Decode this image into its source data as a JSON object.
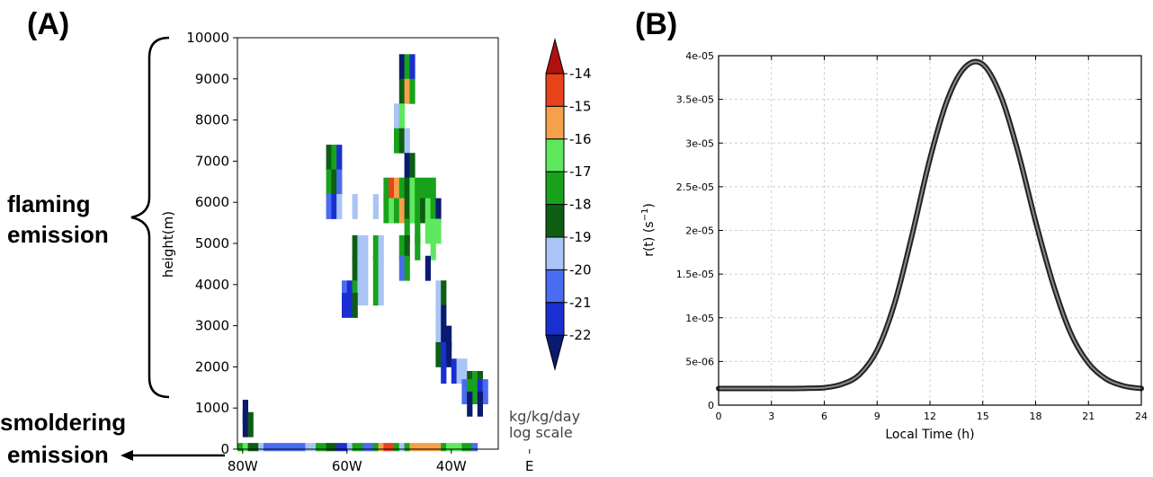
{
  "panel_a": {
    "label": "(A)",
    "flaming_label": [
      "flaming",
      "emission"
    ],
    "smoldering_label": [
      "smoldering",
      "emission"
    ],
    "ylabel": "height(m)",
    "y_ticks": [
      "0",
      "1000",
      "2000",
      "3000",
      "4000",
      "5000",
      "6000",
      "7000",
      "8000",
      "9000",
      "10000"
    ],
    "x_ticks": [
      "80W",
      "60W",
      "40W",
      "E"
    ],
    "colorbar": {
      "ticks": [
        "-14",
        "-15",
        "-16",
        "-17",
        "-18",
        "-19",
        "-20",
        "-21",
        "-22"
      ],
      "colors": [
        "#0a1a6e",
        "#1a2fd0",
        "#4a6cf0",
        "#a9c4f5",
        "#0d5e13",
        "#18a21c",
        "#5ee85e",
        "#f5a04a",
        "#e8421a",
        "#b01010"
      ],
      "unit_lines": [
        "kg/kg/day",
        "log scale"
      ]
    }
  },
  "panel_b": {
    "label": "(B)",
    "xlabel": "Local Time (h)",
    "ylabel_base": "r(t)  (s",
    "ylabel_sup": "−1",
    "ylabel_end": ")",
    "x_ticks": [
      "0",
      "3",
      "6",
      "9",
      "12",
      "15",
      "18",
      "21",
      "24"
    ],
    "y_ticks": [
      "0",
      "5e-06",
      "1e-05",
      "1.5e-05",
      "2e-05",
      "2.5e-05",
      "3e-05",
      "3.5e-05",
      "4e-05"
    ]
  },
  "chart_data": [
    {
      "type": "heatmap",
      "title": "",
      "xlabel": "",
      "ylabel": "height(m)",
      "xlim": [
        -81,
        -31
      ],
      "ylim": [
        0,
        10000
      ],
      "x_units": "degrees longitude (negative = W)",
      "value_units": "log10 kg/kg/day",
      "color_levels": [
        -22,
        -21,
        -20,
        -19,
        -18,
        -17,
        -16,
        -15,
        -14
      ],
      "cells": [
        {
          "x": -80,
          "y": 900,
          "v": -22.5
        },
        {
          "x": -80,
          "y": 600,
          "v": -22.5
        },
        {
          "x": -79,
          "y": 600,
          "v": -18.5
        },
        {
          "x": -64,
          "y": 7100,
          "v": -18.5
        },
        {
          "x": -63,
          "y": 7100,
          "v": -17.5
        },
        {
          "x": -62,
          "y": 7100,
          "v": -21.5
        },
        {
          "x": -64,
          "y": 6500,
          "v": -17.5
        },
        {
          "x": -63,
          "y": 6500,
          "v": -18.5
        },
        {
          "x": -62,
          "y": 6500,
          "v": -20.5
        },
        {
          "x": -64,
          "y": 5900,
          "v": -20.5
        },
        {
          "x": -63,
          "y": 5900,
          "v": -21.5
        },
        {
          "x": -62,
          "y": 5900,
          "v": -19.5
        },
        {
          "x": -59,
          "y": 5900,
          "v": -19.5
        },
        {
          "x": -55,
          "y": 5900,
          "v": -19.5
        },
        {
          "x": -50,
          "y": 9300,
          "v": -22.5
        },
        {
          "x": -49,
          "y": 9300,
          "v": -17.5
        },
        {
          "x": -48,
          "y": 9300,
          "v": -21.5
        },
        {
          "x": -50,
          "y": 8700,
          "v": -18.5
        },
        {
          "x": -49,
          "y": 8700,
          "v": -15.5
        },
        {
          "x": -48,
          "y": 8700,
          "v": -17.5
        },
        {
          "x": -51,
          "y": 8100,
          "v": -19.5
        },
        {
          "x": -50,
          "y": 8100,
          "v": -16.5
        },
        {
          "x": -51,
          "y": 7500,
          "v": -17.5
        },
        {
          "x": -50,
          "y": 7500,
          "v": -18.5
        },
        {
          "x": -49,
          "y": 7500,
          "v": -19.5
        },
        {
          "x": -49,
          "y": 6900,
          "v": -22.5
        },
        {
          "x": -48,
          "y": 6900,
          "v": -18.5
        },
        {
          "x": -53,
          "y": 6300,
          "v": -17.5
        },
        {
          "x": -52,
          "y": 6300,
          "v": -14.5
        },
        {
          "x": -51,
          "y": 6300,
          "v": -15.5
        },
        {
          "x": -50,
          "y": 6300,
          "v": -17.5
        },
        {
          "x": -49,
          "y": 6300,
          "v": -18.5
        },
        {
          "x": -48,
          "y": 6300,
          "v": -16.5
        },
        {
          "x": -47,
          "y": 6300,
          "v": -17.5
        },
        {
          "x": -46,
          "y": 6300,
          "v": -17.5
        },
        {
          "x": -45,
          "y": 6300,
          "v": -17.5
        },
        {
          "x": -44,
          "y": 6300,
          "v": -17.5
        },
        {
          "x": -53,
          "y": 5800,
          "v": -17.5
        },
        {
          "x": -52,
          "y": 5800,
          "v": -16.5
        },
        {
          "x": -51,
          "y": 5800,
          "v": -17.5
        },
        {
          "x": -50,
          "y": 5800,
          "v": -15.5
        },
        {
          "x": -49,
          "y": 5800,
          "v": -18.5
        },
        {
          "x": -48,
          "y": 5800,
          "v": -16.5
        },
        {
          "x": -47,
          "y": 5800,
          "v": -17.5
        },
        {
          "x": -46,
          "y": 5800,
          "v": -18.5
        },
        {
          "x": -45,
          "y": 5800,
          "v": -16.5
        },
        {
          "x": -44,
          "y": 5800,
          "v": -17.5
        },
        {
          "x": -43,
          "y": 5800,
          "v": -22.5
        },
        {
          "x": -49,
          "y": 5300,
          "v": -17.5
        },
        {
          "x": -47,
          "y": 5300,
          "v": -17.5
        },
        {
          "x": -45,
          "y": 5300,
          "v": -16.5
        },
        {
          "x": -44,
          "y": 5300,
          "v": -16.5
        },
        {
          "x": -43,
          "y": 5300,
          "v": -16.5
        },
        {
          "x": -59,
          "y": 4900,
          "v": -18.5
        },
        {
          "x": -58,
          "y": 4900,
          "v": -19.5
        },
        {
          "x": -57,
          "y": 4900,
          "v": -19.5
        },
        {
          "x": -55,
          "y": 4900,
          "v": -17.5
        },
        {
          "x": -54,
          "y": 4900,
          "v": -19.5
        },
        {
          "x": -50,
          "y": 4900,
          "v": -17.5
        },
        {
          "x": -49,
          "y": 4900,
          "v": -18.5
        },
        {
          "x": -47,
          "y": 4900,
          "v": -17.5
        },
        {
          "x": -44,
          "y": 4900,
          "v": -16.5
        },
        {
          "x": -59,
          "y": 4400,
          "v": -18.5
        },
        {
          "x": -58,
          "y": 4400,
          "v": -19.5
        },
        {
          "x": -57,
          "y": 4400,
          "v": -19.5
        },
        {
          "x": -55,
          "y": 4400,
          "v": -17.5
        },
        {
          "x": -54,
          "y": 4400,
          "v": -19.5
        },
        {
          "x": -50,
          "y": 4400,
          "v": -20.5
        },
        {
          "x": -49,
          "y": 4400,
          "v": -17.5
        },
        {
          "x": -45,
          "y": 4400,
          "v": -22.5
        },
        {
          "x": -61,
          "y": 3800,
          "v": -20.5
        },
        {
          "x": -60,
          "y": 3800,
          "v": -21.5
        },
        {
          "x": -59,
          "y": 3800,
          "v": -17.5
        },
        {
          "x": -58,
          "y": 3800,
          "v": -19.5
        },
        {
          "x": -57,
          "y": 3800,
          "v": -19.5
        },
        {
          "x": -55,
          "y": 3800,
          "v": -17.5
        },
        {
          "x": -54,
          "y": 3800,
          "v": -19.5
        },
        {
          "x": -43,
          "y": 3800,
          "v": -19.5
        },
        {
          "x": -42,
          "y": 3800,
          "v": -18.5
        },
        {
          "x": -61,
          "y": 3500,
          "v": -21.5
        },
        {
          "x": -60,
          "y": 3500,
          "v": -21.5
        },
        {
          "x": -59,
          "y": 3500,
          "v": -18.5
        },
        {
          "x": -43,
          "y": 3200,
          "v": -19.5
        },
        {
          "x": -42,
          "y": 3200,
          "v": -22.5
        },
        {
          "x": -43,
          "y": 2700,
          "v": -19.5
        },
        {
          "x": -42,
          "y": 2700,
          "v": -22.5
        },
        {
          "x": -41,
          "y": 2700,
          "v": -22.5
        },
        {
          "x": -43,
          "y": 2300,
          "v": -18.5
        },
        {
          "x": -42,
          "y": 2300,
          "v": -21.5
        },
        {
          "x": -41,
          "y": 2300,
          "v": -22.5
        },
        {
          "x": -42,
          "y": 1900,
          "v": -21.5
        },
        {
          "x": -40,
          "y": 1900,
          "v": -21.5
        },
        {
          "x": -39,
          "y": 1900,
          "v": -19.5
        },
        {
          "x": -38,
          "y": 1900,
          "v": -19.5
        },
        {
          "x": -37,
          "y": 1600,
          "v": -18.5
        },
        {
          "x": -36,
          "y": 1600,
          "v": -17.5
        },
        {
          "x": -35,
          "y": 1600,
          "v": -18.5
        },
        {
          "x": -38,
          "y": 1400,
          "v": -20.5
        },
        {
          "x": -37,
          "y": 1400,
          "v": -17.5
        },
        {
          "x": -36,
          "y": 1400,
          "v": -17.5
        },
        {
          "x": -35,
          "y": 1400,
          "v": -21.5
        },
        {
          "x": -34,
          "y": 1400,
          "v": -20.5
        },
        {
          "x": -37,
          "y": 1100,
          "v": -22.5
        },
        {
          "x": -35,
          "y": 1100,
          "v": -22.5
        }
      ],
      "surface_row": {
        "y": 50,
        "cells": [
          {
            "x0": -81,
            "x1": -80,
            "v": -17.5
          },
          {
            "x0": -80,
            "x1": -79,
            "v": -16.5
          },
          {
            "x0": -79,
            "x1": -77,
            "v": -18.5
          },
          {
            "x0": -77,
            "x1": -76,
            "v": -19.5
          },
          {
            "x0": -76,
            "x1": -68,
            "v": -20.5
          },
          {
            "x0": -68,
            "x1": -66,
            "v": -19.5
          },
          {
            "x0": -66,
            "x1": -64,
            "v": -17.5
          },
          {
            "x0": -64,
            "x1": -62,
            "v": -18.5
          },
          {
            "x0": -62,
            "x1": -60,
            "v": -21.5
          },
          {
            "x0": -60,
            "x1": -59,
            "v": -19.5
          },
          {
            "x0": -59,
            "x1": -57,
            "v": -17.5
          },
          {
            "x0": -57,
            "x1": -55,
            "v": -20.5
          },
          {
            "x0": -55,
            "x1": -54,
            "v": -17.5
          },
          {
            "x0": -54,
            "x1": -53,
            "v": -15.5
          },
          {
            "x0": -53,
            "x1": -51,
            "v": -14.5
          },
          {
            "x0": -51,
            "x1": -50,
            "v": -17.5
          },
          {
            "x0": -50,
            "x1": -49,
            "v": -19.5
          },
          {
            "x0": -49,
            "x1": -48,
            "v": -17.5
          },
          {
            "x0": -48,
            "x1": -42,
            "v": -15.5
          },
          {
            "x0": -42,
            "x1": -41,
            "v": -17.5
          },
          {
            "x0": -41,
            "x1": -38,
            "v": -16.5
          },
          {
            "x0": -38,
            "x1": -36,
            "v": -17.5
          },
          {
            "x0": -36,
            "x1": -35,
            "v": -20.5
          }
        ]
      }
    },
    {
      "type": "line",
      "title": "",
      "xlabel": "Local Time (h)",
      "ylabel": "r(t) (s^-1)",
      "xlim": [
        0,
        24
      ],
      "ylim": [
        0,
        4e-05
      ],
      "grid": true,
      "x": [
        0,
        1,
        2,
        3,
        4,
        5,
        6,
        7,
        8,
        9,
        10,
        11,
        12,
        13,
        14,
        15,
        16,
        17,
        18,
        19,
        20,
        21,
        22,
        23,
        24
      ],
      "series": [
        {
          "values": [
            1.9e-06,
            1.9e-06,
            1.9e-06,
            1.9e-06,
            1.9e-06,
            1.93e-06,
            2e-06,
            2.4e-06,
            3.5e-06,
            6.3e-06,
            1.17e-05,
            1.96e-05,
            2.82e-05,
            3.5e-05,
            3.87e-05,
            3.9e-05,
            3.55e-05,
            2.9e-05,
            2.1e-05,
            1.38e-05,
            8.2e-06,
            4.8e-06,
            3e-06,
            2.2e-06,
            1.9e-06
          ]
        }
      ]
    }
  ]
}
